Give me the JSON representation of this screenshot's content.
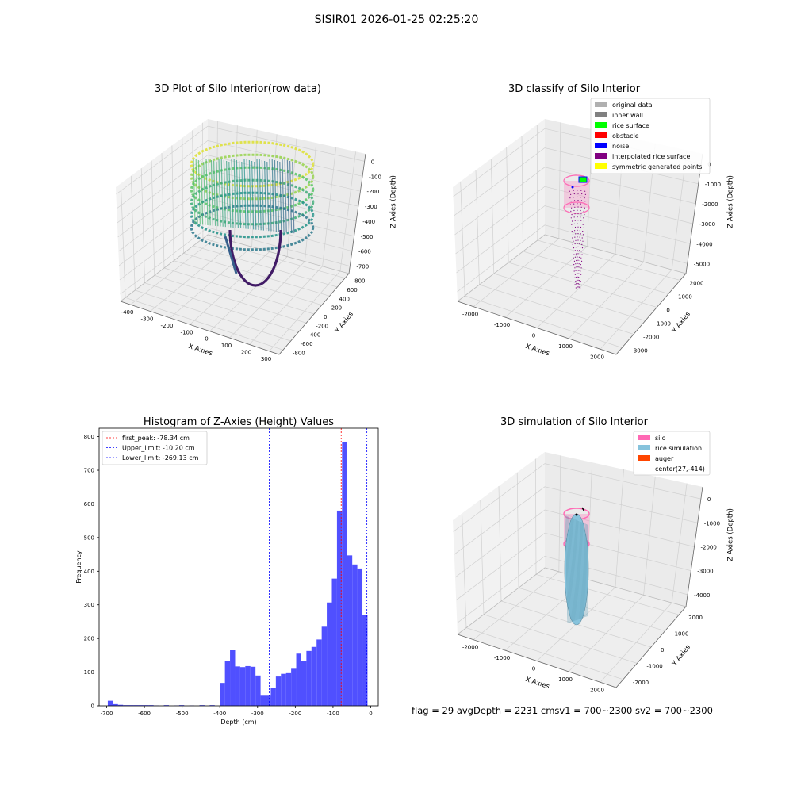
{
  "figure": {
    "suptitle": "SISIR01 2026-01-25 02:25:20",
    "status_text": "flag = 29  avgDepth = 2231 cmsv1 = 700~2300  sv2 = 700~2300"
  },
  "colors": {
    "hist_bar": "#5050ff",
    "first_peak_line": "#ff0000",
    "limit_line": "#0000ff",
    "grid": "#d0d0d0",
    "pane": "#f2f2f2",
    "silo": "#ff69b4",
    "rice": "#87c3dc",
    "auger": "#ff4500"
  },
  "chart_data": [
    {
      "id": "raw",
      "type": "scatter",
      "title": "3D Plot of Silo Interior(row data)",
      "xlabel": "X Axies",
      "ylabel": "Y Axies",
      "zlabel": "Z Axies (Depth)",
      "xticks": [
        "-400",
        "-300",
        "-200",
        "-100",
        "0",
        "100",
        "200",
        "300"
      ],
      "yticks": [
        "-800",
        "-600",
        "-400",
        "-200",
        "0",
        "200",
        "400",
        "600",
        "800"
      ],
      "zticks": [
        "0",
        "-100",
        "-200",
        "-300",
        "-400",
        "-500",
        "-600",
        "-700"
      ],
      "colormap": "viridis"
    },
    {
      "id": "classify",
      "type": "scatter",
      "title": "3D classify of Silo Interior",
      "xlabel": "X Axies",
      "ylabel": "Y Axies",
      "zlabel": "Z Axies (Depth)",
      "xticks": [
        "-2000",
        "-1000",
        "0",
        "1000",
        "2000"
      ],
      "yticks": [
        "-3000",
        "-2000",
        "-1000",
        "0",
        "1000",
        "2000"
      ],
      "zticks": [
        "0",
        "-1000",
        "-2000",
        "-3000",
        "-4000",
        "-5000"
      ],
      "legend": [
        {
          "label": "original data",
          "color": "#b0b0b0"
        },
        {
          "label": "inner wall",
          "color": "#808080"
        },
        {
          "label": "rice surface",
          "color": "#00ff00"
        },
        {
          "label": "obstacle",
          "color": "#ff0000"
        },
        {
          "label": "noise",
          "color": "#0000ff"
        },
        {
          "label": "interpolated rice surface",
          "color": "#800080"
        },
        {
          "label": "symmetric generated points",
          "color": "#ffff00"
        }
      ],
      "legend_position": "top-right"
    },
    {
      "id": "histogram",
      "type": "bar",
      "title": "Histogram of Z-Axies (Height) Values",
      "xlabel": "Depth (cm)",
      "ylabel": "Frequency",
      "xlim": [
        -720,
        20
      ],
      "ylim": [
        0,
        825
      ],
      "xticks": [
        -700,
        -600,
        -500,
        -400,
        -300,
        -200,
        -100,
        0
      ],
      "yticks": [
        0,
        100,
        200,
        300,
        400,
        500,
        600,
        700,
        800
      ],
      "bin_width": 13.5,
      "bins": [
        {
          "x0": -697,
          "v": 15
        },
        {
          "x0": -683.5,
          "v": 5
        },
        {
          "x0": -670,
          "v": 3
        },
        {
          "x0": -656.5,
          "v": 2
        },
        {
          "x0": -643,
          "v": 2
        },
        {
          "x0": -629.5,
          "v": 2
        },
        {
          "x0": -616,
          "v": 2
        },
        {
          "x0": -602.5,
          "v": 2
        },
        {
          "x0": -589,
          "v": 2
        },
        {
          "x0": -575.5,
          "v": 1
        },
        {
          "x0": -548.5,
          "v": 2
        },
        {
          "x0": -521.5,
          "v": 1
        },
        {
          "x0": -508,
          "v": 2
        },
        {
          "x0": -481,
          "v": 1
        },
        {
          "x0": -454,
          "v": 2
        },
        {
          "x0": -427,
          "v": 2
        },
        {
          "x0": -400,
          "v": 68
        },
        {
          "x0": -386.5,
          "v": 134
        },
        {
          "x0": -373,
          "v": 165
        },
        {
          "x0": -359.5,
          "v": 117
        },
        {
          "x0": -346,
          "v": 115
        },
        {
          "x0": -332.5,
          "v": 118
        },
        {
          "x0": -319,
          "v": 116
        },
        {
          "x0": -305.5,
          "v": 90
        },
        {
          "x0": -292,
          "v": 30
        },
        {
          "x0": -278.5,
          "v": 30
        },
        {
          "x0": -265,
          "v": 52
        },
        {
          "x0": -251.5,
          "v": 87
        },
        {
          "x0": -238,
          "v": 95
        },
        {
          "x0": -224.5,
          "v": 97
        },
        {
          "x0": -211,
          "v": 110
        },
        {
          "x0": -197.5,
          "v": 155
        },
        {
          "x0": -184,
          "v": 133
        },
        {
          "x0": -170.5,
          "v": 163
        },
        {
          "x0": -157,
          "v": 175
        },
        {
          "x0": -143.5,
          "v": 197
        },
        {
          "x0": -130,
          "v": 235
        },
        {
          "x0": -116.5,
          "v": 307
        },
        {
          "x0": -103,
          "v": 378
        },
        {
          "x0": -89.5,
          "v": 580
        },
        {
          "x0": -76,
          "v": 785
        },
        {
          "x0": -62.5,
          "v": 447
        },
        {
          "x0": -49,
          "v": 420
        },
        {
          "x0": -35.5,
          "v": 408
        },
        {
          "x0": -22,
          "v": 270
        }
      ],
      "vlines": [
        {
          "label": "first_peak: -78.34 cm",
          "x": -78.34,
          "color": "#ff0000"
        },
        {
          "label": "Upper_limit: -10.20 cm",
          "x": -10.2,
          "color": "#0000ff"
        },
        {
          "label": "Lower_limit: -269.13 cm",
          "x": -269.13,
          "color": "#0000ff"
        }
      ],
      "legend_position": "top-left"
    },
    {
      "id": "simulation",
      "type": "scatter",
      "title": "3D simulation of Silo Interior",
      "xlabel": "X Axies",
      "ylabel": "Y Axies",
      "zlabel": "Z Axies (Depth)",
      "xticks": [
        "-2000",
        "-1000",
        "0",
        "1000",
        "2000"
      ],
      "yticks": [
        "-2000",
        "-1000",
        "0",
        "1000",
        "2000"
      ],
      "zticks": [
        "0",
        "-1000",
        "-2000",
        "-3000",
        "-4000"
      ],
      "legend": [
        {
          "label": "silo",
          "color": "#ff69b4",
          "swatch": true
        },
        {
          "label": "rice simulation",
          "color": "#87c3dc",
          "swatch": true
        },
        {
          "label": "auger",
          "color": "#ff4500",
          "swatch": true
        },
        {
          "label": "center(27,-414)",
          "color": "#ffffff",
          "swatch": false
        }
      ],
      "legend_position": "top-right"
    }
  ]
}
